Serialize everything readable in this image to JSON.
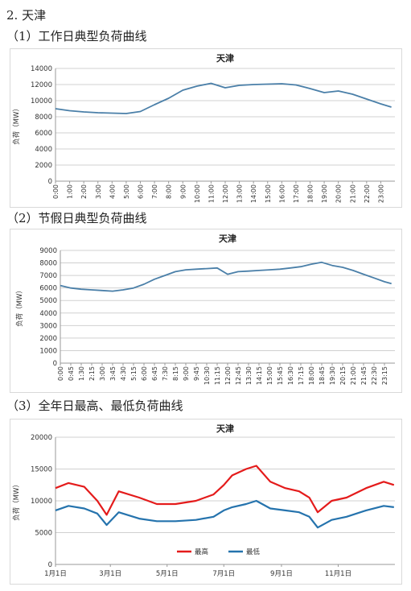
{
  "section_title": "2. 天津",
  "subtitles": [
    "（1）工作日典型负荷曲线",
    "（2）节假日典型负荷曲线",
    "（3）全年日最高、最低负荷曲线"
  ],
  "colors": {
    "line": "#4a7fa8",
    "max": "#e41b1b",
    "min": "#2573ad",
    "grid": "#d0d0d0"
  },
  "chart_data": [
    {
      "type": "line",
      "title": "天津",
      "ylabel": "负荷（MW）",
      "xlabel": "",
      "ylim": [
        0,
        14000
      ],
      "yticks": [
        0,
        2000,
        4000,
        6000,
        8000,
        10000,
        12000,
        14000
      ],
      "x_ticks": [
        "0:00",
        "1:00",
        "2:00",
        "3:00",
        "4:00",
        "5:00",
        "6:00",
        "7:00",
        "8:00",
        "9:00",
        "10:00",
        "11:00",
        "12:00",
        "13:00",
        "14:00",
        "15:00",
        "16:00",
        "17:00",
        "18:00",
        "19:00",
        "20:00",
        "21:00",
        "22:00",
        "23:00"
      ],
      "grid": true,
      "series": [
        {
          "x": [
            "0:00",
            "1:00",
            "2:00",
            "3:00",
            "4:00",
            "5:00",
            "6:00",
            "7:00",
            "8:00",
            "9:00",
            "10:00",
            "11:00",
            "12:00",
            "13:00",
            "14:00",
            "15:00",
            "16:00",
            "17:00",
            "18:00",
            "19:00",
            "20:00",
            "21:00",
            "22:00",
            "23:00",
            "23:45"
          ],
          "values": [
            9000,
            8750,
            8600,
            8500,
            8450,
            8400,
            8650,
            9500,
            10300,
            11300,
            11800,
            12150,
            11600,
            11900,
            12000,
            12050,
            12100,
            11950,
            11500,
            11000,
            11200,
            10800,
            10200,
            9600,
            9200
          ]
        }
      ]
    },
    {
      "type": "line",
      "title": "天津",
      "ylabel": "负荷（MW）",
      "xlabel": "",
      "ylim": [
        0,
        9000
      ],
      "yticks": [
        0,
        1000,
        2000,
        3000,
        4000,
        5000,
        6000,
        7000,
        8000,
        9000
      ],
      "x_ticks": [
        "0:00",
        "0:45",
        "1:30",
        "2:15",
        "3:00",
        "3:45",
        "4:30",
        "5:15",
        "6:00",
        "6:45",
        "7:30",
        "8:15",
        "9:00",
        "9:45",
        "10:30",
        "11:15",
        "12:00",
        "12:45",
        "13:30",
        "14:15",
        "15:00",
        "15:45",
        "16:30",
        "17:15",
        "18:00",
        "18:45",
        "19:30",
        "20:15",
        "21:00",
        "21:45",
        "22:30",
        "23:15"
      ],
      "grid": true,
      "series": [
        {
          "x": [
            "0:00",
            "0:45",
            "1:30",
            "2:15",
            "3:00",
            "3:45",
            "4:30",
            "5:15",
            "6:00",
            "6:45",
            "7:30",
            "8:15",
            "9:00",
            "9:45",
            "10:30",
            "11:15",
            "12:00",
            "12:45",
            "13:30",
            "14:15",
            "15:00",
            "15:45",
            "16:30",
            "17:15",
            "18:00",
            "18:45",
            "19:30",
            "20:15",
            "21:00",
            "21:45",
            "22:30",
            "23:15",
            "23:45"
          ],
          "values": [
            6200,
            6000,
            5900,
            5850,
            5800,
            5750,
            5850,
            6000,
            6300,
            6700,
            7000,
            7300,
            7450,
            7500,
            7550,
            7600,
            7100,
            7300,
            7350,
            7400,
            7450,
            7500,
            7600,
            7700,
            7900,
            8050,
            7800,
            7650,
            7400,
            7100,
            6800,
            6500,
            6350
          ]
        }
      ]
    },
    {
      "type": "line",
      "title": "天津",
      "ylabel": "负荷（MW）",
      "xlabel": "",
      "ylim": [
        0,
        20000
      ],
      "yticks": [
        0,
        5000,
        10000,
        15000,
        20000
      ],
      "x_ticks": [
        "1月1日",
        "3月1日",
        "5月1日",
        "7月1日",
        "9月1日",
        "11月1日"
      ],
      "legend": "bottom-center",
      "grid": true,
      "series": [
        {
          "name": "最高",
          "x": [
            "1月1日",
            "1月15日",
            "2月1日",
            "2月15日",
            "2月25日",
            "3月10日",
            "4月1日",
            "4月20日",
            "5月10日",
            "6月1日",
            "6月20日",
            "7月1日",
            "7月10日",
            "7月25日",
            "8月5日",
            "8月20日",
            "9月5日",
            "9月20日",
            "10月1日",
            "10月10日",
            "10月25日",
            "11月10日",
            "12月1日",
            "12月20日",
            "12月31日"
          ],
          "values": [
            12000,
            12800,
            12200,
            10000,
            7800,
            11500,
            10500,
            9500,
            9500,
            10000,
            11000,
            12500,
            14000,
            15000,
            15500,
            13000,
            12000,
            11500,
            10500,
            8200,
            10000,
            10500,
            12000,
            13000,
            12500
          ]
        },
        {
          "name": "最低",
          "x": [
            "1月1日",
            "1月15日",
            "2月1日",
            "2月15日",
            "2月25日",
            "3月10日",
            "4月1日",
            "4月20日",
            "5月10日",
            "6月1日",
            "6月20日",
            "7月1日",
            "7月10日",
            "7月25日",
            "8月5日",
            "8月20日",
            "9月5日",
            "9月20日",
            "10月1日",
            "10月10日",
            "10月25日",
            "11月10日",
            "12月1日",
            "12月20日",
            "12月31日"
          ],
          "values": [
            8500,
            9200,
            8800,
            8000,
            6200,
            8200,
            7200,
            6800,
            6800,
            7000,
            7500,
            8500,
            9000,
            9500,
            10000,
            8800,
            8500,
            8200,
            7500,
            5800,
            7000,
            7500,
            8500,
            9200,
            9000
          ]
        }
      ]
    }
  ]
}
